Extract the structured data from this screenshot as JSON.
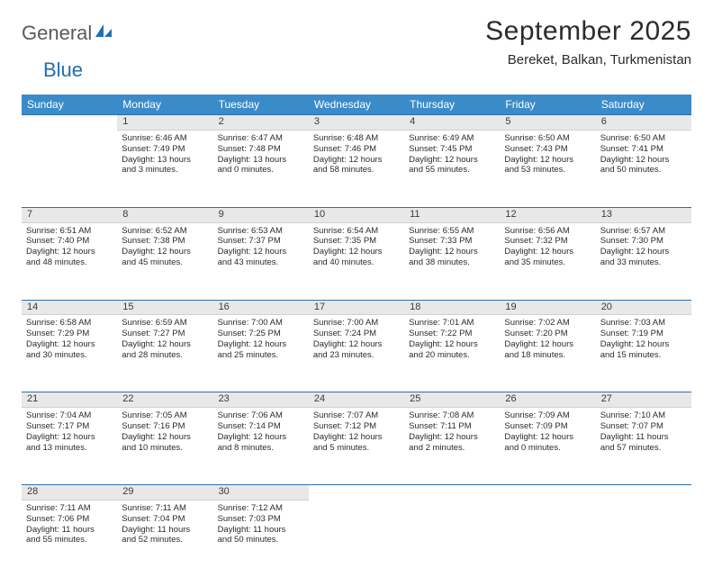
{
  "logo": {
    "text1": "General",
    "text2": "Blue"
  },
  "title": "September 2025",
  "location": "Bereket, Balkan, Turkmenistan",
  "colors": {
    "header_bg": "#3b8bc9",
    "header_text": "#ffffff",
    "daynum_bg": "#e8e8e8",
    "daynum_border_top": "#2f6fa8",
    "logo_gray": "#5a5a5a",
    "logo_blue": "#1f6fb2",
    "text": "#2b2b2b",
    "page_bg": "#ffffff"
  },
  "fonts": {
    "title_pt": 30,
    "location_pt": 15,
    "dayheader_pt": 12,
    "cell_pt": 9.5,
    "daynum_pt": 11
  },
  "day_headers": [
    "Sunday",
    "Monday",
    "Tuesday",
    "Wednesday",
    "Thursday",
    "Friday",
    "Saturday"
  ],
  "weeks": [
    {
      "nums": [
        "",
        "1",
        "2",
        "3",
        "4",
        "5",
        "6"
      ],
      "cells": [
        null,
        {
          "sunrise": "Sunrise: 6:46 AM",
          "sunset": "Sunset: 7:49 PM",
          "day1": "Daylight: 13 hours",
          "day2": "and 3 minutes."
        },
        {
          "sunrise": "Sunrise: 6:47 AM",
          "sunset": "Sunset: 7:48 PM",
          "day1": "Daylight: 13 hours",
          "day2": "and 0 minutes."
        },
        {
          "sunrise": "Sunrise: 6:48 AM",
          "sunset": "Sunset: 7:46 PM",
          "day1": "Daylight: 12 hours",
          "day2": "and 58 minutes."
        },
        {
          "sunrise": "Sunrise: 6:49 AM",
          "sunset": "Sunset: 7:45 PM",
          "day1": "Daylight: 12 hours",
          "day2": "and 55 minutes."
        },
        {
          "sunrise": "Sunrise: 6:50 AM",
          "sunset": "Sunset: 7:43 PM",
          "day1": "Daylight: 12 hours",
          "day2": "and 53 minutes."
        },
        {
          "sunrise": "Sunrise: 6:50 AM",
          "sunset": "Sunset: 7:41 PM",
          "day1": "Daylight: 12 hours",
          "day2": "and 50 minutes."
        }
      ]
    },
    {
      "nums": [
        "7",
        "8",
        "9",
        "10",
        "11",
        "12",
        "13"
      ],
      "cells": [
        {
          "sunrise": "Sunrise: 6:51 AM",
          "sunset": "Sunset: 7:40 PM",
          "day1": "Daylight: 12 hours",
          "day2": "and 48 minutes."
        },
        {
          "sunrise": "Sunrise: 6:52 AM",
          "sunset": "Sunset: 7:38 PM",
          "day1": "Daylight: 12 hours",
          "day2": "and 45 minutes."
        },
        {
          "sunrise": "Sunrise: 6:53 AM",
          "sunset": "Sunset: 7:37 PM",
          "day1": "Daylight: 12 hours",
          "day2": "and 43 minutes."
        },
        {
          "sunrise": "Sunrise: 6:54 AM",
          "sunset": "Sunset: 7:35 PM",
          "day1": "Daylight: 12 hours",
          "day2": "and 40 minutes."
        },
        {
          "sunrise": "Sunrise: 6:55 AM",
          "sunset": "Sunset: 7:33 PM",
          "day1": "Daylight: 12 hours",
          "day2": "and 38 minutes."
        },
        {
          "sunrise": "Sunrise: 6:56 AM",
          "sunset": "Sunset: 7:32 PM",
          "day1": "Daylight: 12 hours",
          "day2": "and 35 minutes."
        },
        {
          "sunrise": "Sunrise: 6:57 AM",
          "sunset": "Sunset: 7:30 PM",
          "day1": "Daylight: 12 hours",
          "day2": "and 33 minutes."
        }
      ]
    },
    {
      "nums": [
        "14",
        "15",
        "16",
        "17",
        "18",
        "19",
        "20"
      ],
      "cells": [
        {
          "sunrise": "Sunrise: 6:58 AM",
          "sunset": "Sunset: 7:29 PM",
          "day1": "Daylight: 12 hours",
          "day2": "and 30 minutes."
        },
        {
          "sunrise": "Sunrise: 6:59 AM",
          "sunset": "Sunset: 7:27 PM",
          "day1": "Daylight: 12 hours",
          "day2": "and 28 minutes."
        },
        {
          "sunrise": "Sunrise: 7:00 AM",
          "sunset": "Sunset: 7:25 PM",
          "day1": "Daylight: 12 hours",
          "day2": "and 25 minutes."
        },
        {
          "sunrise": "Sunrise: 7:00 AM",
          "sunset": "Sunset: 7:24 PM",
          "day1": "Daylight: 12 hours",
          "day2": "and 23 minutes."
        },
        {
          "sunrise": "Sunrise: 7:01 AM",
          "sunset": "Sunset: 7:22 PM",
          "day1": "Daylight: 12 hours",
          "day2": "and 20 minutes."
        },
        {
          "sunrise": "Sunrise: 7:02 AM",
          "sunset": "Sunset: 7:20 PM",
          "day1": "Daylight: 12 hours",
          "day2": "and 18 minutes."
        },
        {
          "sunrise": "Sunrise: 7:03 AM",
          "sunset": "Sunset: 7:19 PM",
          "day1": "Daylight: 12 hours",
          "day2": "and 15 minutes."
        }
      ]
    },
    {
      "nums": [
        "21",
        "22",
        "23",
        "24",
        "25",
        "26",
        "27"
      ],
      "cells": [
        {
          "sunrise": "Sunrise: 7:04 AM",
          "sunset": "Sunset: 7:17 PM",
          "day1": "Daylight: 12 hours",
          "day2": "and 13 minutes."
        },
        {
          "sunrise": "Sunrise: 7:05 AM",
          "sunset": "Sunset: 7:16 PM",
          "day1": "Daylight: 12 hours",
          "day2": "and 10 minutes."
        },
        {
          "sunrise": "Sunrise: 7:06 AM",
          "sunset": "Sunset: 7:14 PM",
          "day1": "Daylight: 12 hours",
          "day2": "and 8 minutes."
        },
        {
          "sunrise": "Sunrise: 7:07 AM",
          "sunset": "Sunset: 7:12 PM",
          "day1": "Daylight: 12 hours",
          "day2": "and 5 minutes."
        },
        {
          "sunrise": "Sunrise: 7:08 AM",
          "sunset": "Sunset: 7:11 PM",
          "day1": "Daylight: 12 hours",
          "day2": "and 2 minutes."
        },
        {
          "sunrise": "Sunrise: 7:09 AM",
          "sunset": "Sunset: 7:09 PM",
          "day1": "Daylight: 12 hours",
          "day2": "and 0 minutes."
        },
        {
          "sunrise": "Sunrise: 7:10 AM",
          "sunset": "Sunset: 7:07 PM",
          "day1": "Daylight: 11 hours",
          "day2": "and 57 minutes."
        }
      ]
    },
    {
      "nums": [
        "28",
        "29",
        "30",
        "",
        "",
        "",
        ""
      ],
      "cells": [
        {
          "sunrise": "Sunrise: 7:11 AM",
          "sunset": "Sunset: 7:06 PM",
          "day1": "Daylight: 11 hours",
          "day2": "and 55 minutes."
        },
        {
          "sunrise": "Sunrise: 7:11 AM",
          "sunset": "Sunset: 7:04 PM",
          "day1": "Daylight: 11 hours",
          "day2": "and 52 minutes."
        },
        {
          "sunrise": "Sunrise: 7:12 AM",
          "sunset": "Sunset: 7:03 PM",
          "day1": "Daylight: 11 hours",
          "day2": "and 50 minutes."
        },
        null,
        null,
        null,
        null
      ]
    }
  ]
}
